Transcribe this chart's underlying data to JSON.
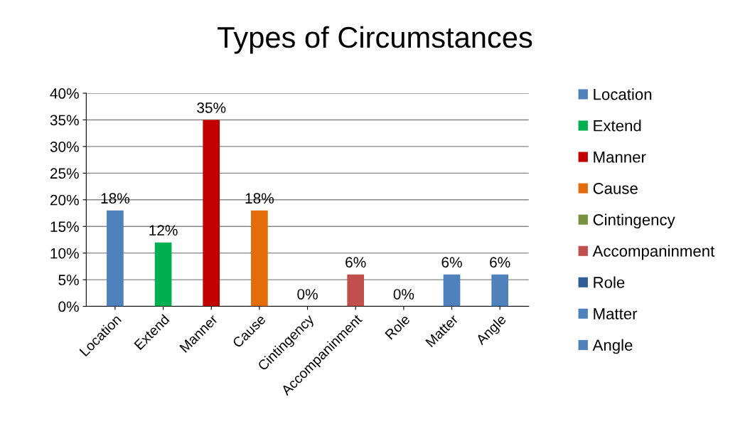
{
  "chart_data": {
    "type": "bar",
    "title": "Types of Circumstances",
    "categories": [
      "Location",
      "Extend",
      "Manner",
      "Cause",
      "Cintingency",
      "Accompaninment",
      "Role",
      "Matter",
      "Angle"
    ],
    "series": [
      {
        "name": "Location",
        "color": "#4f81bd",
        "values": [
          18,
          null,
          null,
          null,
          null,
          null,
          null,
          null,
          null
        ],
        "value_labels": [
          "18%",
          null,
          null,
          null,
          null,
          null,
          null,
          null,
          null
        ]
      },
      {
        "name": "Extend",
        "color": "#00b050",
        "values": [
          null,
          12,
          null,
          null,
          null,
          null,
          null,
          null,
          null
        ],
        "value_labels": [
          null,
          "12%",
          null,
          null,
          null,
          null,
          null,
          null,
          null
        ]
      },
      {
        "name": "Manner",
        "color": "#c00000",
        "values": [
          null,
          null,
          35,
          null,
          null,
          null,
          null,
          null,
          null
        ],
        "value_labels": [
          null,
          null,
          "35%",
          null,
          null,
          null,
          null,
          null,
          null
        ]
      },
      {
        "name": "Cause",
        "color": "#e36c09",
        "values": [
          null,
          null,
          null,
          18,
          null,
          null,
          null,
          null,
          null
        ],
        "value_labels": [
          null,
          null,
          null,
          "18%",
          null,
          null,
          null,
          null,
          null
        ]
      },
      {
        "name": "Cintingency",
        "color": "#76923c",
        "values": [
          null,
          null,
          null,
          null,
          0,
          null,
          null,
          null,
          null
        ],
        "value_labels": [
          null,
          null,
          null,
          null,
          "0%",
          null,
          null,
          null,
          null
        ]
      },
      {
        "name": "Accompaninment",
        "color": "#c0504d",
        "values": [
          null,
          null,
          null,
          null,
          null,
          6,
          null,
          null,
          null
        ],
        "value_labels": [
          null,
          null,
          null,
          null,
          null,
          "6%",
          null,
          null,
          null
        ]
      },
      {
        "name": "Role",
        "color": "#2f5d95",
        "values": [
          null,
          null,
          null,
          null,
          null,
          null,
          0,
          null,
          null
        ],
        "value_labels": [
          null,
          null,
          null,
          null,
          null,
          null,
          "0%",
          null,
          null
        ]
      },
      {
        "name": "Matter",
        "color": "#4f81bd",
        "values": [
          null,
          null,
          null,
          null,
          null,
          null,
          null,
          6,
          null
        ],
        "value_labels": [
          null,
          null,
          null,
          null,
          null,
          null,
          null,
          "6%",
          null
        ]
      },
      {
        "name": "Angle",
        "color": "#4f81bd",
        "values": [
          null,
          null,
          null,
          null,
          null,
          null,
          null,
          null,
          6
        ],
        "value_labels": [
          null,
          null,
          null,
          null,
          null,
          null,
          null,
          null,
          "6%"
        ]
      }
    ],
    "ylim": [
      0,
      40
    ],
    "yticks": [
      {
        "value": 0,
        "label": "0%"
      },
      {
        "value": 5,
        "label": "5%"
      },
      {
        "value": 10,
        "label": "10%"
      },
      {
        "value": 15,
        "label": "15%"
      },
      {
        "value": 20,
        "label": "20%"
      },
      {
        "value": 25,
        "label": "25%"
      },
      {
        "value": 30,
        "label": "30%"
      },
      {
        "value": 35,
        "label": "35%"
      },
      {
        "value": 40,
        "label": "40%"
      }
    ],
    "grid": "y",
    "legend": "right"
  }
}
